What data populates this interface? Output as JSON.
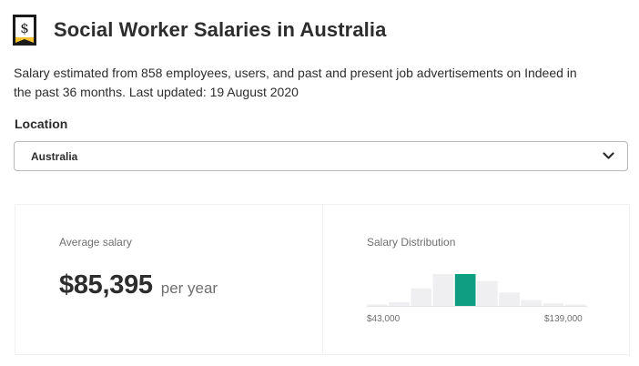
{
  "header": {
    "title": "Social Worker Salaries in Australia",
    "icon": "salary-document-icon"
  },
  "description": "Salary estimated from 858 employees, users, and past and present job advertisements on Indeed in the past 36 months. Last updated: 19 August 2020",
  "location": {
    "label": "Location",
    "selected": "Australia",
    "icon": "chevron-down-icon"
  },
  "average_salary": {
    "label": "Average salary",
    "amount": "$85,395",
    "period": "per year"
  },
  "distribution": {
    "label": "Salary Distribution",
    "min_label": "$43,000",
    "max_label": "$139,000",
    "bar_levels": [
      0.05,
      0.12,
      0.55,
      1.0,
      1.0,
      0.78,
      0.42,
      0.18,
      0.08,
      0.04
    ],
    "highlighted_index": 4,
    "bar_color": "#efeff1",
    "highlight_color": "#0f9e81"
  },
  "colors": {
    "text": "#2d2d2d",
    "muted": "#6f6f6f",
    "icon_fill": "#f6c332"
  }
}
